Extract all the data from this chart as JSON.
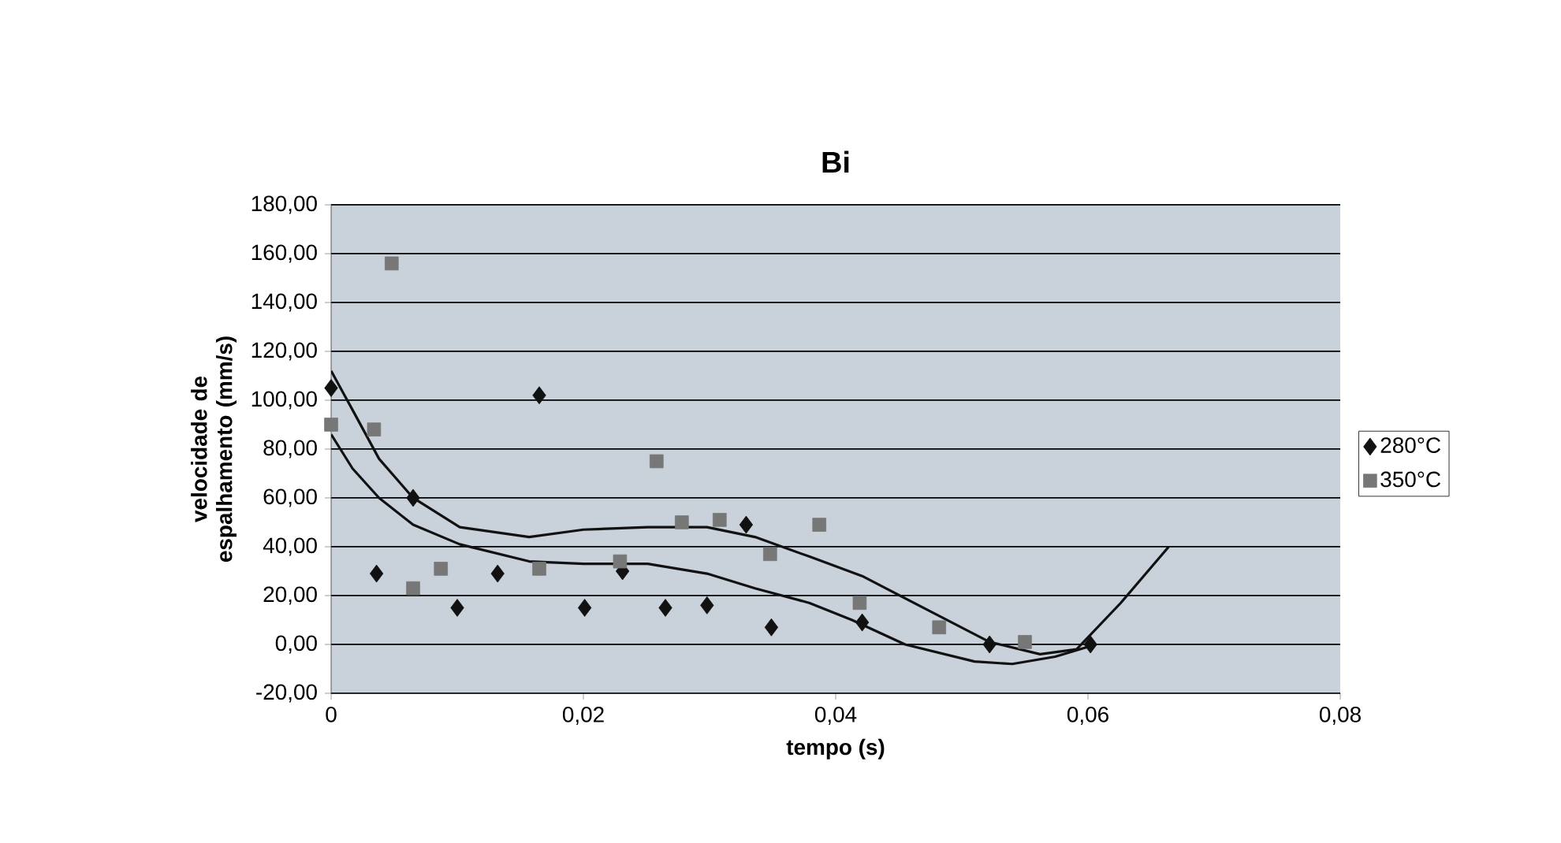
{
  "chart_data": {
    "type": "scatter",
    "title": "Bi",
    "xlabel": "tempo (s)",
    "ylabel": "velocidade de espalhamento (mm/s)",
    "series": [
      {
        "name": "280°C",
        "color": "#111111",
        "marker": "diamond",
        "x": [
          0,
          0.0036,
          0.0065,
          0.01,
          0.0132,
          0.0165,
          0.0201,
          0.0231,
          0.0265,
          0.0298,
          0.0329,
          0.0349,
          0.0421,
          0.0522,
          0.0602
        ],
        "values": [
          105,
          29,
          60,
          15,
          29,
          102,
          15,
          30,
          15,
          16,
          49,
          7,
          9,
          0,
          0
        ]
      },
      {
        "name": "350°C",
        "color": "#777777",
        "marker": "square",
        "x": [
          0,
          0.0034,
          0.0048,
          0.0065,
          0.0087,
          0.0165,
          0.0229,
          0.0258,
          0.0278,
          0.0308,
          0.0348,
          0.0387,
          0.0419,
          0.0482,
          0.055
        ],
        "values": [
          90,
          88,
          156,
          23,
          31,
          31,
          34,
          75,
          50,
          51,
          37,
          49,
          17,
          7,
          1
        ]
      },
      {
        "type": "line",
        "color": "#111111",
        "marker": "none",
        "x": [
          0,
          0.0017,
          0.0038,
          0.0065,
          0.0102,
          0.0157,
          0.02,
          0.0251,
          0.0298,
          0.0336,
          0.0379,
          0.0421,
          0.0477,
          0.0522,
          0.0562,
          0.0591,
          0.0626,
          0.0664
        ],
        "values": [
          112,
          96,
          76,
          60,
          48,
          44,
          47,
          48,
          48,
          44,
          36,
          28,
          13,
          1,
          -4,
          -2,
          17,
          40
        ]
      },
      {
        "type": "line",
        "color": "#111111",
        "marker": "none",
        "x": [
          0,
          0.0017,
          0.0038,
          0.0065,
          0.0102,
          0.0157,
          0.02,
          0.0251,
          0.0298,
          0.0336,
          0.0379,
          0.0413,
          0.0455,
          0.051,
          0.054,
          0.0574,
          0.06
        ],
        "values": [
          86,
          72,
          60,
          49,
          41,
          34,
          33,
          33,
          29,
          23,
          17,
          10,
          0,
          -7,
          -8,
          -5,
          -1
        ]
      }
    ],
    "xlim": [
      0,
      0.08
    ],
    "ylim": [
      -20,
      180
    ],
    "xticks": [
      {
        "value": 0,
        "label": "0"
      },
      {
        "value": 0.02,
        "label": "0,02"
      },
      {
        "value": 0.04,
        "label": "0,04"
      },
      {
        "value": 0.06,
        "label": "0,06"
      },
      {
        "value": 0.08,
        "label": "0,08"
      }
    ],
    "yticks": [
      {
        "value": -20,
        "label": "-20,00"
      },
      {
        "value": 0,
        "label": "0,00"
      },
      {
        "value": 20,
        "label": "20,00"
      },
      {
        "value": 40,
        "label": "40,00"
      },
      {
        "value": 60,
        "label": "60,00"
      },
      {
        "value": 80,
        "label": "80,00"
      },
      {
        "value": 100,
        "label": "100,00"
      },
      {
        "value": 120,
        "label": "120,00"
      },
      {
        "value": 140,
        "label": "140,00"
      },
      {
        "value": 160,
        "label": "160,00"
      },
      {
        "value": 180,
        "label": "180,00"
      }
    ],
    "grid": "y",
    "legend": "right"
  }
}
